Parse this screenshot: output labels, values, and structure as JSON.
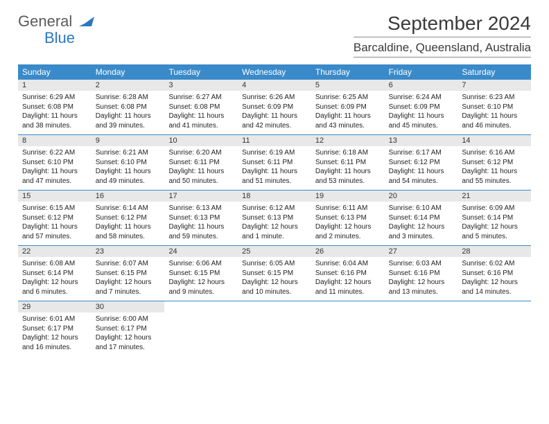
{
  "brand": {
    "word1": "General",
    "word2": "Blue",
    "logo_color": "#2b78c2"
  },
  "title": "September 2024",
  "location": "Barcaldine, Queensland, Australia",
  "colors": {
    "header_bg": "#3a8ac9",
    "header_fg": "#ffffff",
    "daynum_bg": "#e8e8e8",
    "row_border": "#3a8ac9",
    "text": "#222222"
  },
  "typography": {
    "title_fontsize": 28,
    "location_fontsize": 17,
    "dayheader_fontsize": 12,
    "cell_fontsize": 10
  },
  "day_headers": [
    "Sunday",
    "Monday",
    "Tuesday",
    "Wednesday",
    "Thursday",
    "Friday",
    "Saturday"
  ],
  "weeks": [
    [
      {
        "day": "1",
        "sunrise": "Sunrise: 6:29 AM",
        "sunset": "Sunset: 6:08 PM",
        "daylight": "Daylight: 11 hours and 38 minutes."
      },
      {
        "day": "2",
        "sunrise": "Sunrise: 6:28 AM",
        "sunset": "Sunset: 6:08 PM",
        "daylight": "Daylight: 11 hours and 39 minutes."
      },
      {
        "day": "3",
        "sunrise": "Sunrise: 6:27 AM",
        "sunset": "Sunset: 6:08 PM",
        "daylight": "Daylight: 11 hours and 41 minutes."
      },
      {
        "day": "4",
        "sunrise": "Sunrise: 6:26 AM",
        "sunset": "Sunset: 6:09 PM",
        "daylight": "Daylight: 11 hours and 42 minutes."
      },
      {
        "day": "5",
        "sunrise": "Sunrise: 6:25 AM",
        "sunset": "Sunset: 6:09 PM",
        "daylight": "Daylight: 11 hours and 43 minutes."
      },
      {
        "day": "6",
        "sunrise": "Sunrise: 6:24 AM",
        "sunset": "Sunset: 6:09 PM",
        "daylight": "Daylight: 11 hours and 45 minutes."
      },
      {
        "day": "7",
        "sunrise": "Sunrise: 6:23 AM",
        "sunset": "Sunset: 6:10 PM",
        "daylight": "Daylight: 11 hours and 46 minutes."
      }
    ],
    [
      {
        "day": "8",
        "sunrise": "Sunrise: 6:22 AM",
        "sunset": "Sunset: 6:10 PM",
        "daylight": "Daylight: 11 hours and 47 minutes."
      },
      {
        "day": "9",
        "sunrise": "Sunrise: 6:21 AM",
        "sunset": "Sunset: 6:10 PM",
        "daylight": "Daylight: 11 hours and 49 minutes."
      },
      {
        "day": "10",
        "sunrise": "Sunrise: 6:20 AM",
        "sunset": "Sunset: 6:11 PM",
        "daylight": "Daylight: 11 hours and 50 minutes."
      },
      {
        "day": "11",
        "sunrise": "Sunrise: 6:19 AM",
        "sunset": "Sunset: 6:11 PM",
        "daylight": "Daylight: 11 hours and 51 minutes."
      },
      {
        "day": "12",
        "sunrise": "Sunrise: 6:18 AM",
        "sunset": "Sunset: 6:11 PM",
        "daylight": "Daylight: 11 hours and 53 minutes."
      },
      {
        "day": "13",
        "sunrise": "Sunrise: 6:17 AM",
        "sunset": "Sunset: 6:12 PM",
        "daylight": "Daylight: 11 hours and 54 minutes."
      },
      {
        "day": "14",
        "sunrise": "Sunrise: 6:16 AM",
        "sunset": "Sunset: 6:12 PM",
        "daylight": "Daylight: 11 hours and 55 minutes."
      }
    ],
    [
      {
        "day": "15",
        "sunrise": "Sunrise: 6:15 AM",
        "sunset": "Sunset: 6:12 PM",
        "daylight": "Daylight: 11 hours and 57 minutes."
      },
      {
        "day": "16",
        "sunrise": "Sunrise: 6:14 AM",
        "sunset": "Sunset: 6:12 PM",
        "daylight": "Daylight: 11 hours and 58 minutes."
      },
      {
        "day": "17",
        "sunrise": "Sunrise: 6:13 AM",
        "sunset": "Sunset: 6:13 PM",
        "daylight": "Daylight: 11 hours and 59 minutes."
      },
      {
        "day": "18",
        "sunrise": "Sunrise: 6:12 AM",
        "sunset": "Sunset: 6:13 PM",
        "daylight": "Daylight: 12 hours and 1 minute."
      },
      {
        "day": "19",
        "sunrise": "Sunrise: 6:11 AM",
        "sunset": "Sunset: 6:13 PM",
        "daylight": "Daylight: 12 hours and 2 minutes."
      },
      {
        "day": "20",
        "sunrise": "Sunrise: 6:10 AM",
        "sunset": "Sunset: 6:14 PM",
        "daylight": "Daylight: 12 hours and 3 minutes."
      },
      {
        "day": "21",
        "sunrise": "Sunrise: 6:09 AM",
        "sunset": "Sunset: 6:14 PM",
        "daylight": "Daylight: 12 hours and 5 minutes."
      }
    ],
    [
      {
        "day": "22",
        "sunrise": "Sunrise: 6:08 AM",
        "sunset": "Sunset: 6:14 PM",
        "daylight": "Daylight: 12 hours and 6 minutes."
      },
      {
        "day": "23",
        "sunrise": "Sunrise: 6:07 AM",
        "sunset": "Sunset: 6:15 PM",
        "daylight": "Daylight: 12 hours and 7 minutes."
      },
      {
        "day": "24",
        "sunrise": "Sunrise: 6:06 AM",
        "sunset": "Sunset: 6:15 PM",
        "daylight": "Daylight: 12 hours and 9 minutes."
      },
      {
        "day": "25",
        "sunrise": "Sunrise: 6:05 AM",
        "sunset": "Sunset: 6:15 PM",
        "daylight": "Daylight: 12 hours and 10 minutes."
      },
      {
        "day": "26",
        "sunrise": "Sunrise: 6:04 AM",
        "sunset": "Sunset: 6:16 PM",
        "daylight": "Daylight: 12 hours and 11 minutes."
      },
      {
        "day": "27",
        "sunrise": "Sunrise: 6:03 AM",
        "sunset": "Sunset: 6:16 PM",
        "daylight": "Daylight: 12 hours and 13 minutes."
      },
      {
        "day": "28",
        "sunrise": "Sunrise: 6:02 AM",
        "sunset": "Sunset: 6:16 PM",
        "daylight": "Daylight: 12 hours and 14 minutes."
      }
    ],
    [
      {
        "day": "29",
        "sunrise": "Sunrise: 6:01 AM",
        "sunset": "Sunset: 6:17 PM",
        "daylight": "Daylight: 12 hours and 16 minutes."
      },
      {
        "day": "30",
        "sunrise": "Sunrise: 6:00 AM",
        "sunset": "Sunset: 6:17 PM",
        "daylight": "Daylight: 12 hours and 17 minutes."
      },
      {
        "empty": true
      },
      {
        "empty": true
      },
      {
        "empty": true
      },
      {
        "empty": true
      },
      {
        "empty": true
      }
    ]
  ]
}
